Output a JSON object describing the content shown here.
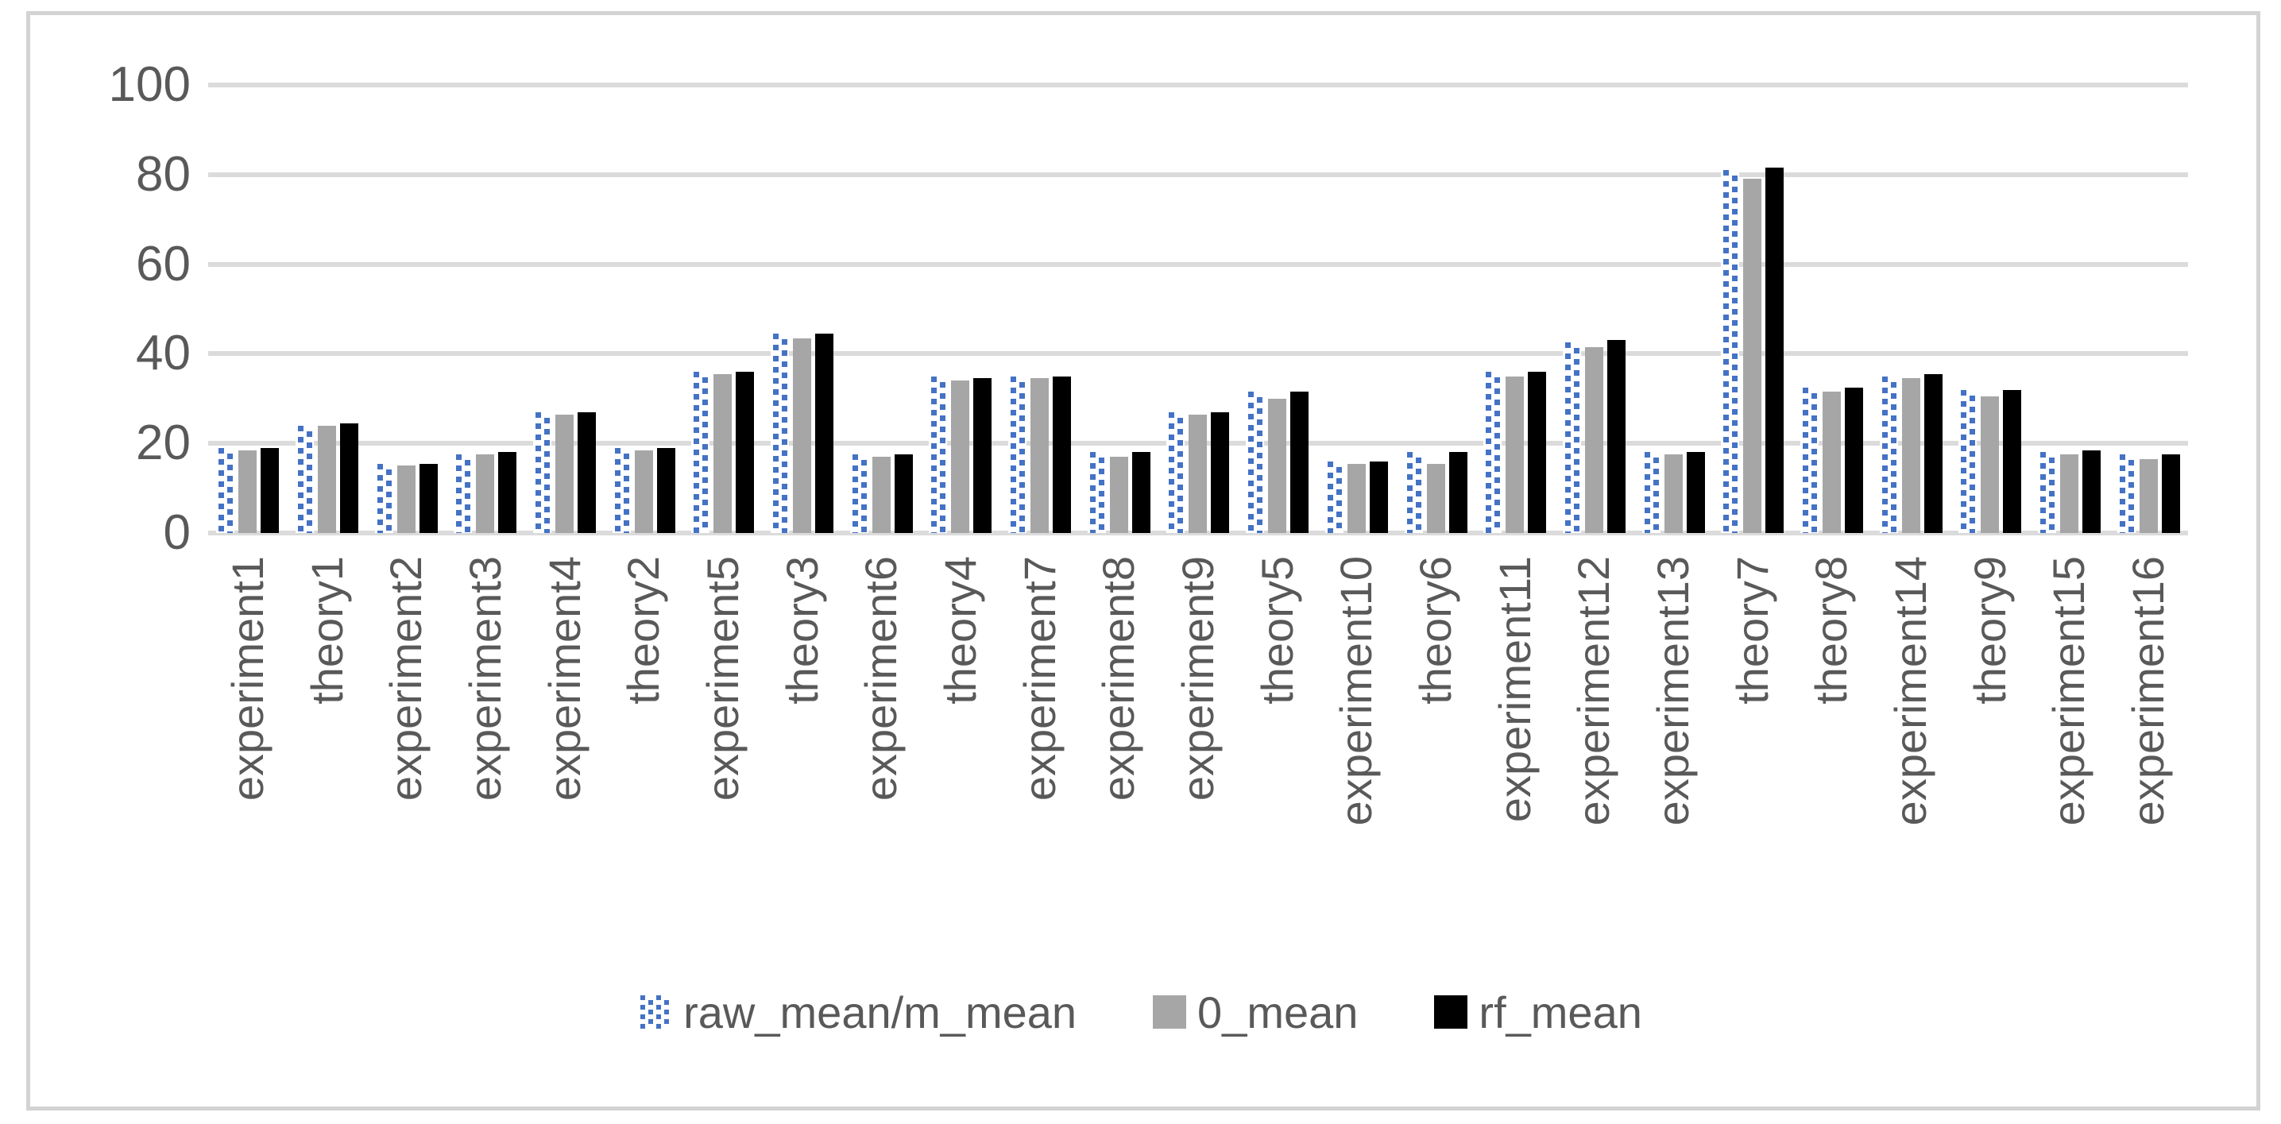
{
  "chart_data": {
    "type": "bar",
    "title": "",
    "xlabel": "",
    "ylabel": "",
    "ylim": [
      0,
      100
    ],
    "yticks": [
      0,
      20,
      40,
      60,
      80,
      100
    ],
    "grid": true,
    "legend_position": "bottom",
    "colors": {
      "pattern_blue": "#4472C4",
      "solid_gray": "#A6A6A6",
      "solid_black": "#000000",
      "gridline": "#dbdbdb",
      "axis_text": "#595959",
      "frame_border": "#d3d3d3"
    },
    "categories": [
      "experiment1",
      "theory1",
      "experiment2",
      "experiment3",
      "experiment4",
      "theory2",
      "experiment5",
      "theory3",
      "experiment6",
      "theory4",
      "experiment7",
      "experiment8",
      "experiment9",
      "theory5",
      "experiment10",
      "theory6",
      "experiment11",
      "experiment12",
      "experiment13",
      "theory7",
      "theory8",
      "experiment14",
      "theory9",
      "experiment15",
      "experiment16"
    ],
    "series": [
      {
        "name": "raw_mean/m_mean",
        "style": "pattern",
        "color": "#4472C4",
        "values": [
          19,
          24,
          15.5,
          17.5,
          27,
          19,
          36,
          44.5,
          17.5,
          35,
          35,
          18,
          27,
          31.5,
          16,
          18,
          36,
          42.5,
          18,
          81,
          32.5,
          35,
          32,
          18,
          17.5
        ]
      },
      {
        "name": "0_mean",
        "style": "solid",
        "color": "#A6A6A6",
        "values": [
          18.5,
          24,
          15,
          17.5,
          26.5,
          18.5,
          35.5,
          43.5,
          17,
          34,
          34.5,
          17,
          26.5,
          30,
          15.5,
          15.5,
          35,
          41.5,
          17.5,
          79,
          31.5,
          34.5,
          30.5,
          17.5,
          16.5
        ]
      },
      {
        "name": "rf_mean",
        "style": "solid",
        "color": "#000000",
        "values": [
          19,
          24.5,
          15.5,
          18,
          27,
          19,
          36,
          44.5,
          17.5,
          34.5,
          35,
          18,
          27,
          31.5,
          16,
          18,
          36,
          43,
          18,
          81.5,
          32.5,
          35.5,
          32,
          18.5,
          17.5
        ]
      }
    ]
  }
}
